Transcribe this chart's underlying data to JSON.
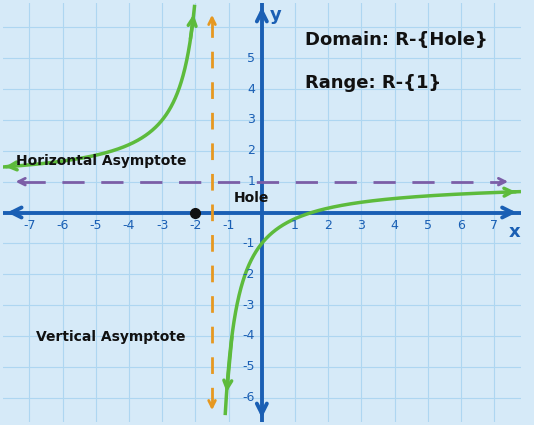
{
  "bg_color": "#d6eaf8",
  "grid_color": "#aed6f1",
  "axis_color": "#1a5fb4",
  "curve_color": "#5dbb3c",
  "vasymptote_color": "#e69820",
  "hasymptote_color": "#7b5ea7",
  "hole_color": "#111111",
  "domain_text": "Domain: R-{Hole}",
  "range_text": "Range: R-{1}",
  "annotation_color": "#111111",
  "xmin": -7.8,
  "xmax": 7.8,
  "ymin": -6.8,
  "ymax": 6.8,
  "xticks": [
    -7,
    -6,
    -5,
    -4,
    -3,
    -2,
    -1,
    1,
    2,
    3,
    4,
    5,
    6,
    7
  ],
  "yticks": [
    -6,
    -5,
    -4,
    -3,
    -2,
    -1,
    1,
    2,
    3,
    4,
    5
  ],
  "vertical_asymptote_x": -1.5,
  "horizontal_asymptote_y": 1,
  "hole_x": -2,
  "hole_y": 0,
  "label_hole": "Hole",
  "label_horizontal": "Horizontal Asymptote",
  "label_vertical": "Vertical Asymptote",
  "curve_lw": 2.5,
  "axis_lw": 2.8,
  "asymptote_lw": 2.0,
  "tick_fontsize": 9,
  "label_fontsize": 10,
  "domain_fontsize": 13
}
